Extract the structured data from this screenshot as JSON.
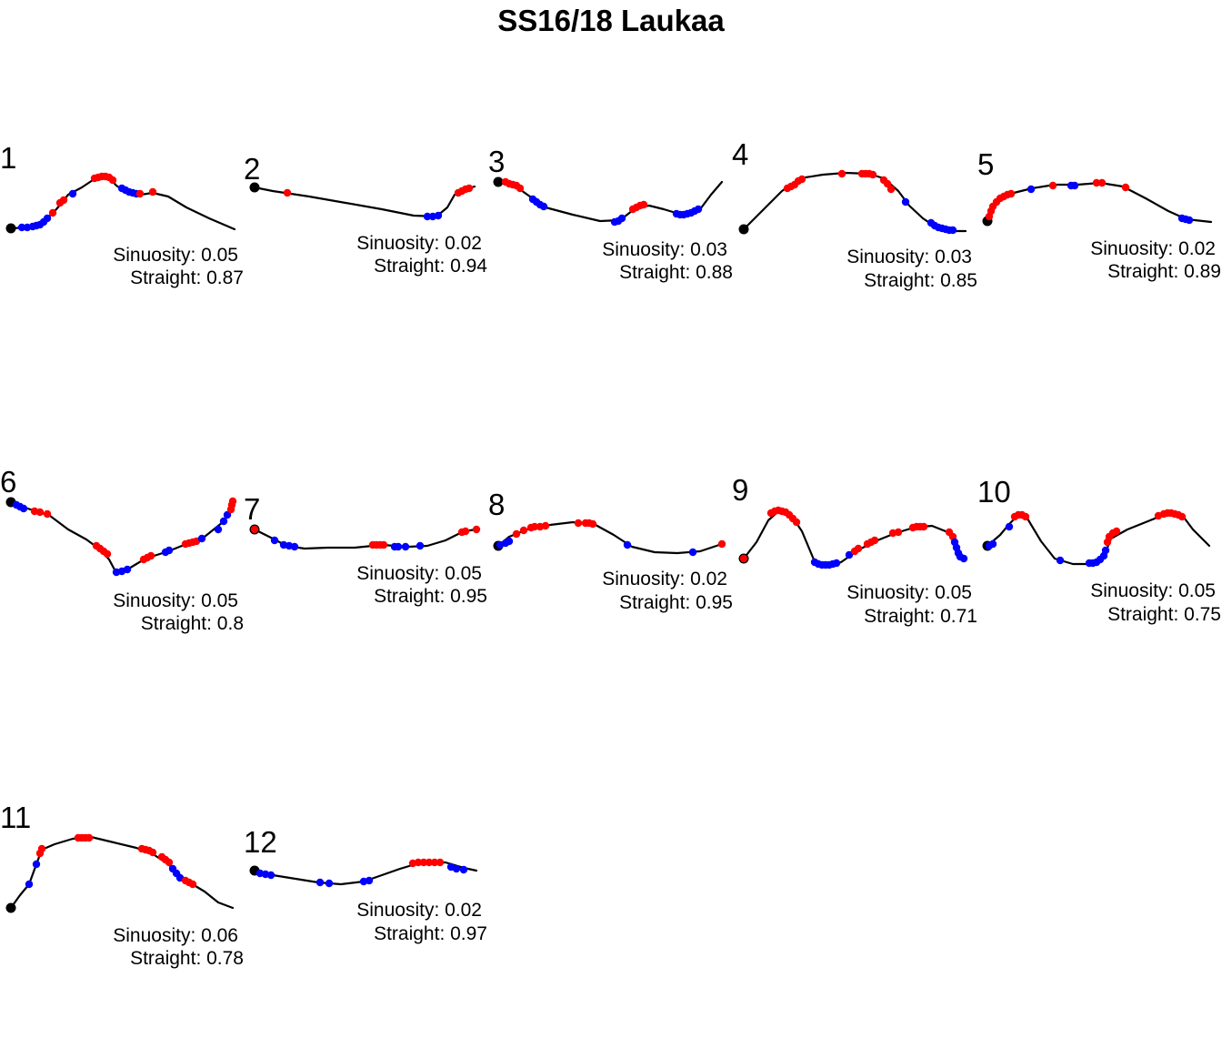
{
  "title": "SS16/18 Laukaa",
  "colors": {
    "red": "#ff0000",
    "blue": "#0000ff",
    "track": "#000000",
    "start": "#000000"
  },
  "labels": {
    "sinuosity_prefix": "Sinuosity: ",
    "straight_prefix": "Straight: "
  },
  "chart_data": {
    "type": "scatter",
    "panels": [
      {
        "id": "1",
        "sinuosity": "0.05",
        "straight": "0.87"
      },
      {
        "id": "2",
        "sinuosity": "0.02",
        "straight": "0.94"
      },
      {
        "id": "3",
        "sinuosity": "0.03",
        "straight": "0.88"
      },
      {
        "id": "4",
        "sinuosity": "0.03",
        "straight": "0.85"
      },
      {
        "id": "5",
        "sinuosity": "0.02",
        "straight": "0.89"
      },
      {
        "id": "6",
        "sinuosity": "0.05",
        "straight": "0.8"
      },
      {
        "id": "7",
        "sinuosity": "0.05",
        "straight": "0.95"
      },
      {
        "id": "8",
        "sinuosity": "0.02",
        "straight": "0.95"
      },
      {
        "id": "9",
        "sinuosity": "0.05",
        "straight": "0.71"
      },
      {
        "id": "10",
        "sinuosity": "0.05",
        "straight": "0.75"
      },
      {
        "id": "11",
        "sinuosity": "0.06",
        "straight": "0.78"
      },
      {
        "id": "12",
        "sinuosity": "0.02",
        "straight": "0.97"
      }
    ]
  }
}
